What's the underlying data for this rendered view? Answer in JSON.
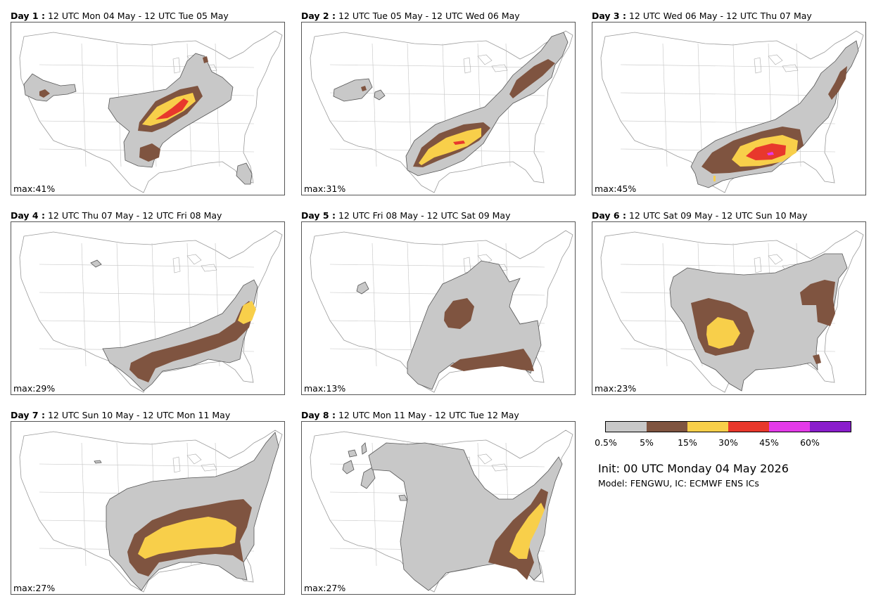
{
  "panels": [
    {
      "day": "Day 1 :",
      "period": "12 UTC Mon 04 May - 12 UTC Tue 05 May",
      "max": "max:41%"
    },
    {
      "day": "Day 2 :",
      "period": "12 UTC Tue 05 May - 12 UTC Wed 06 May",
      "max": "max:31%"
    },
    {
      "day": "Day 3 :",
      "period": "12 UTC Wed 06 May - 12 UTC Thu 07 May",
      "max": "max:45%"
    },
    {
      "day": "Day 4 :",
      "period": "12 UTC Thu 07 May - 12 UTC Fri 08 May",
      "max": "max:29%"
    },
    {
      "day": "Day 5 :",
      "period": "12 UTC Fri 08 May - 12 UTC Sat 09 May",
      "max": "max:13%"
    },
    {
      "day": "Day 6 :",
      "period": "12 UTC Sat 09 May - 12 UTC Sun 10 May",
      "max": "max:23%"
    },
    {
      "day": "Day 7 :",
      "period": "12 UTC Sun 10 May - 12 UTC Mon 11 May",
      "max": "max:27%"
    },
    {
      "day": "Day 8 :",
      "period": "12 UTC Mon 11 May - 12 UTC Tue 12 May",
      "max": "max:27%"
    }
  ],
  "legend": {
    "colors": [
      "#c8c8c8",
      "#7f5440",
      "#f8cf4a",
      "#e8382c",
      "#e43ae8",
      "#8a1ecc"
    ],
    "ticks": [
      "0.5%",
      "5%",
      "15%",
      "30%",
      "45%",
      "60%"
    ]
  },
  "info": {
    "init": "Init: 00 UTC Monday 04 May 2026",
    "model": "Model: FENGWU, IC: ECMWF ENS ICs"
  }
}
